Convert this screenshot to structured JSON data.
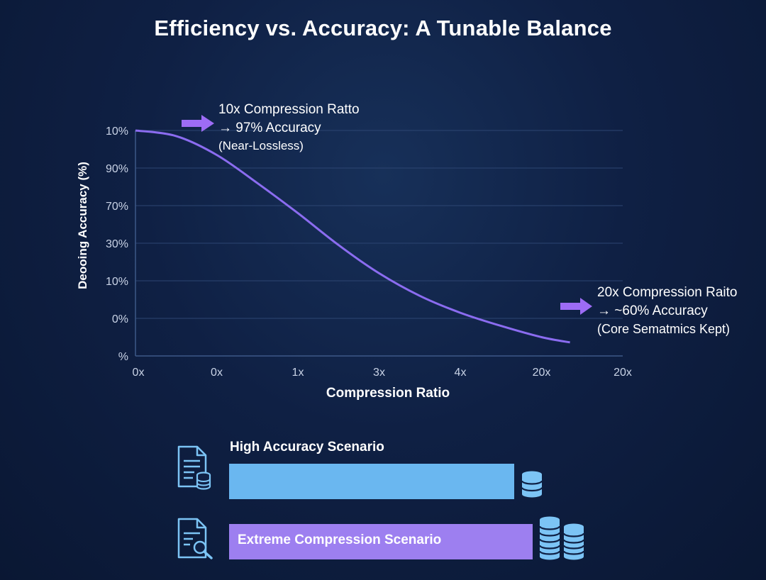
{
  "title": "Efficiency vs. Accuracy: A Tunable Balance",
  "chart_data": {
    "type": "line",
    "xlabel": "Compression Ratio",
    "ylabel": "Deooing Accuracy (%)",
    "x_tick_labels": [
      "0x",
      "0x",
      "1x",
      "3x",
      "4x",
      "20x",
      "20x"
    ],
    "y_tick_labels": [
      "10%",
      "90%",
      "70%",
      "30%",
      "10%",
      "0%",
      "%"
    ],
    "series": [
      {
        "x": [
          0,
          0.5,
          1,
          1.5,
          2,
          2.5,
          3,
          3.5,
          4,
          4.5,
          5,
          5.35
        ],
        "y": [
          6,
          5.85,
          5.35,
          4.6,
          3.8,
          2.95,
          2.2,
          1.6,
          1.15,
          0.8,
          0.5,
          0.36
        ]
      }
    ],
    "x_range": [
      0,
      6
    ],
    "y_range": [
      0,
      6
    ],
    "line_color": "#8b6cf0",
    "grid": "horizontal",
    "annotations": [
      {
        "lines": [
          "10x Compression Ratto",
          "→ 97% Accuracy",
          "(Near-Lossless)"
        ]
      },
      {
        "lines": [
          "20x Compression Raito",
          "→ ~60% Accuracy",
          "(Core Sematmics Kept)"
        ]
      }
    ]
  },
  "scenarios": [
    {
      "label": "High Accuracy Scenario",
      "color": "#6ab7f0"
    },
    {
      "label": "Extreme Compression Scenario",
      "color": "#9d7ff0"
    }
  ],
  "icons": {
    "doc_db": "document-database-icon",
    "doc_search": "document-search-icon",
    "db_stack": "database-stack-icon"
  }
}
